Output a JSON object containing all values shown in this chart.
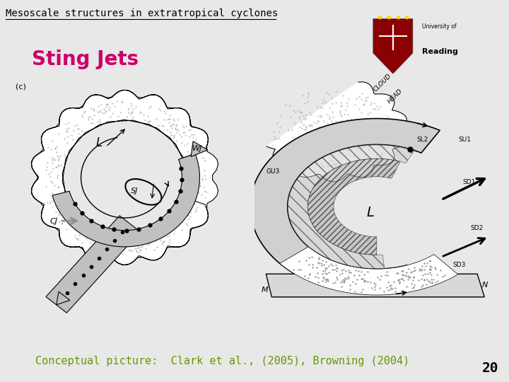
{
  "title": "Mesoscale structures in extratropical cyclones",
  "subtitle": "Sting Jets",
  "caption": "Conceptual picture:  Clark et al., (2005), Browning (2004)",
  "page_number": "20",
  "bg_color": "#e8e8e8",
  "title_color": "#000000",
  "subtitle_color": "#cc0066",
  "caption_color": "#669900",
  "page_color": "#000000",
  "title_fontsize": 10,
  "subtitle_fontsize": 20,
  "caption_fontsize": 11,
  "page_fontsize": 14
}
